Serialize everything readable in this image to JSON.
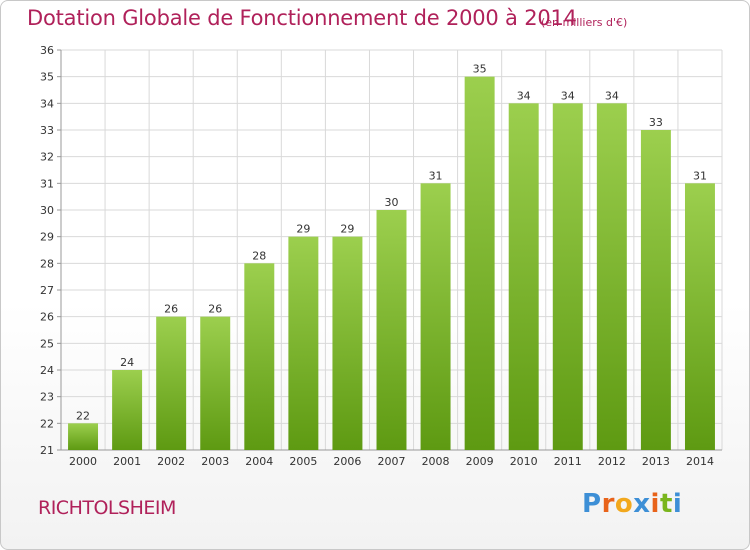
{
  "chart_data": {
    "type": "bar",
    "title": "Dotation Globale de Fonctionnement de 2000 à 2014",
    "unit": "(en milliers d'€)",
    "categories": [
      "2000",
      "2001",
      "2002",
      "2003",
      "2004",
      "2005",
      "2006",
      "2007",
      "2008",
      "2009",
      "2010",
      "2011",
      "2012",
      "2013",
      "2014"
    ],
    "values": [
      22,
      24,
      26,
      26,
      28,
      29,
      29,
      30,
      31,
      35,
      34,
      34,
      34,
      33,
      31
    ],
    "ylim": [
      21,
      36
    ],
    "yticks": [
      "21",
      "22",
      "23",
      "24",
      "25",
      "26",
      "27",
      "28",
      "29",
      "30",
      "31",
      "32",
      "33",
      "34",
      "35",
      "36"
    ],
    "grid": true,
    "bar_color_top": "#9ccf4e",
    "bar_color_bottom": "#5e9a12"
  },
  "footer": {
    "commune": "RICHTOLSHEIM"
  },
  "logo": {
    "text": "Proxiti",
    "letters": [
      "P",
      "r",
      "o",
      "x",
      "i",
      "t",
      "i"
    ],
    "colors": [
      "#3d8fd6",
      "#e8631a",
      "#f2a81d",
      "#3d8fd6",
      "#e8631a",
      "#7ab51d",
      "#3d8fd6"
    ]
  },
  "colors": {
    "accent": "#b0215a",
    "grid": "#d9d9d9",
    "axis": "#999999"
  }
}
